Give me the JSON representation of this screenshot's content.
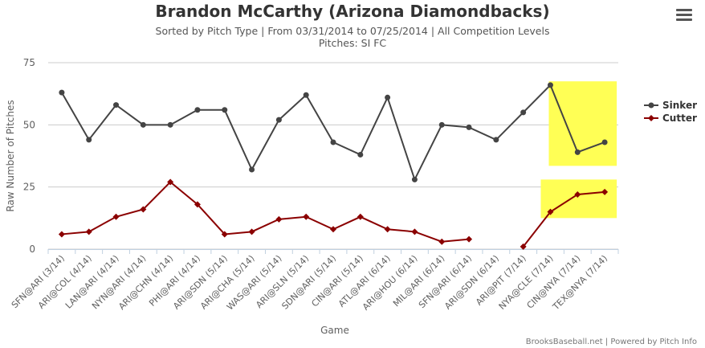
{
  "header": {
    "title": "Brandon McCarthy (Arizona Diamondbacks)",
    "subtitle": "Sorted by Pitch Type | From 03/31/2014 to 07/25/2014 | All Competition Levels",
    "subtitle2": "Pitches: SI FC",
    "menu_icon": "hamburger-menu-icon"
  },
  "credit": "BrooksBaseball.net | Powered by Pitch Info",
  "chart_data": {
    "type": "line",
    "title": "Brandon McCarthy (Arizona Diamondbacks)",
    "xlabel": "Game",
    "ylabel": "Raw Number of Pitches",
    "ylim": [
      0,
      75
    ],
    "yticks": [
      0,
      25,
      50,
      75
    ],
    "grid": true,
    "legend_position": "right",
    "categories": [
      "SFN@ARI (3/14)",
      "ARI@COL (4/14)",
      "LAN@ARI (4/14)",
      "NYN@ARI (4/14)",
      "ARI@CHN (4/14)",
      "PHI@ARI (4/14)",
      "ARI@SDN (5/14)",
      "ARI@CHA (5/14)",
      "WAS@ARI (5/14)",
      "ARI@SLN (5/14)",
      "SDN@ARI (5/14)",
      "CIN@ARI (5/14)",
      "ATL@ARI (6/14)",
      "ARI@HOU (6/14)",
      "MIL@ARI (6/14)",
      "SFN@ARI (6/14)",
      "ARI@SDN (6/14)",
      "ARI@PIT (7/14)",
      "NYA@CLE (7/14)",
      "CIN@NYA (7/14)",
      "TEX@NYA (7/14)"
    ],
    "series": [
      {
        "name": "Sinker",
        "color": "#444444",
        "marker": "circle",
        "values": [
          63,
          44,
          58,
          50,
          50,
          56,
          56,
          32,
          52,
          62,
          43,
          38,
          61,
          28,
          50,
          49,
          44,
          55,
          66,
          39,
          43
        ]
      },
      {
        "name": "Cutter",
        "color": "#8B0000",
        "marker": "diamond",
        "values": [
          6,
          7,
          13,
          16,
          27,
          18,
          6,
          7,
          12,
          13,
          8,
          13,
          8,
          7,
          3,
          4,
          null,
          1,
          15,
          22,
          23
        ]
      }
    ],
    "highlight_color": "#FFFF55"
  }
}
